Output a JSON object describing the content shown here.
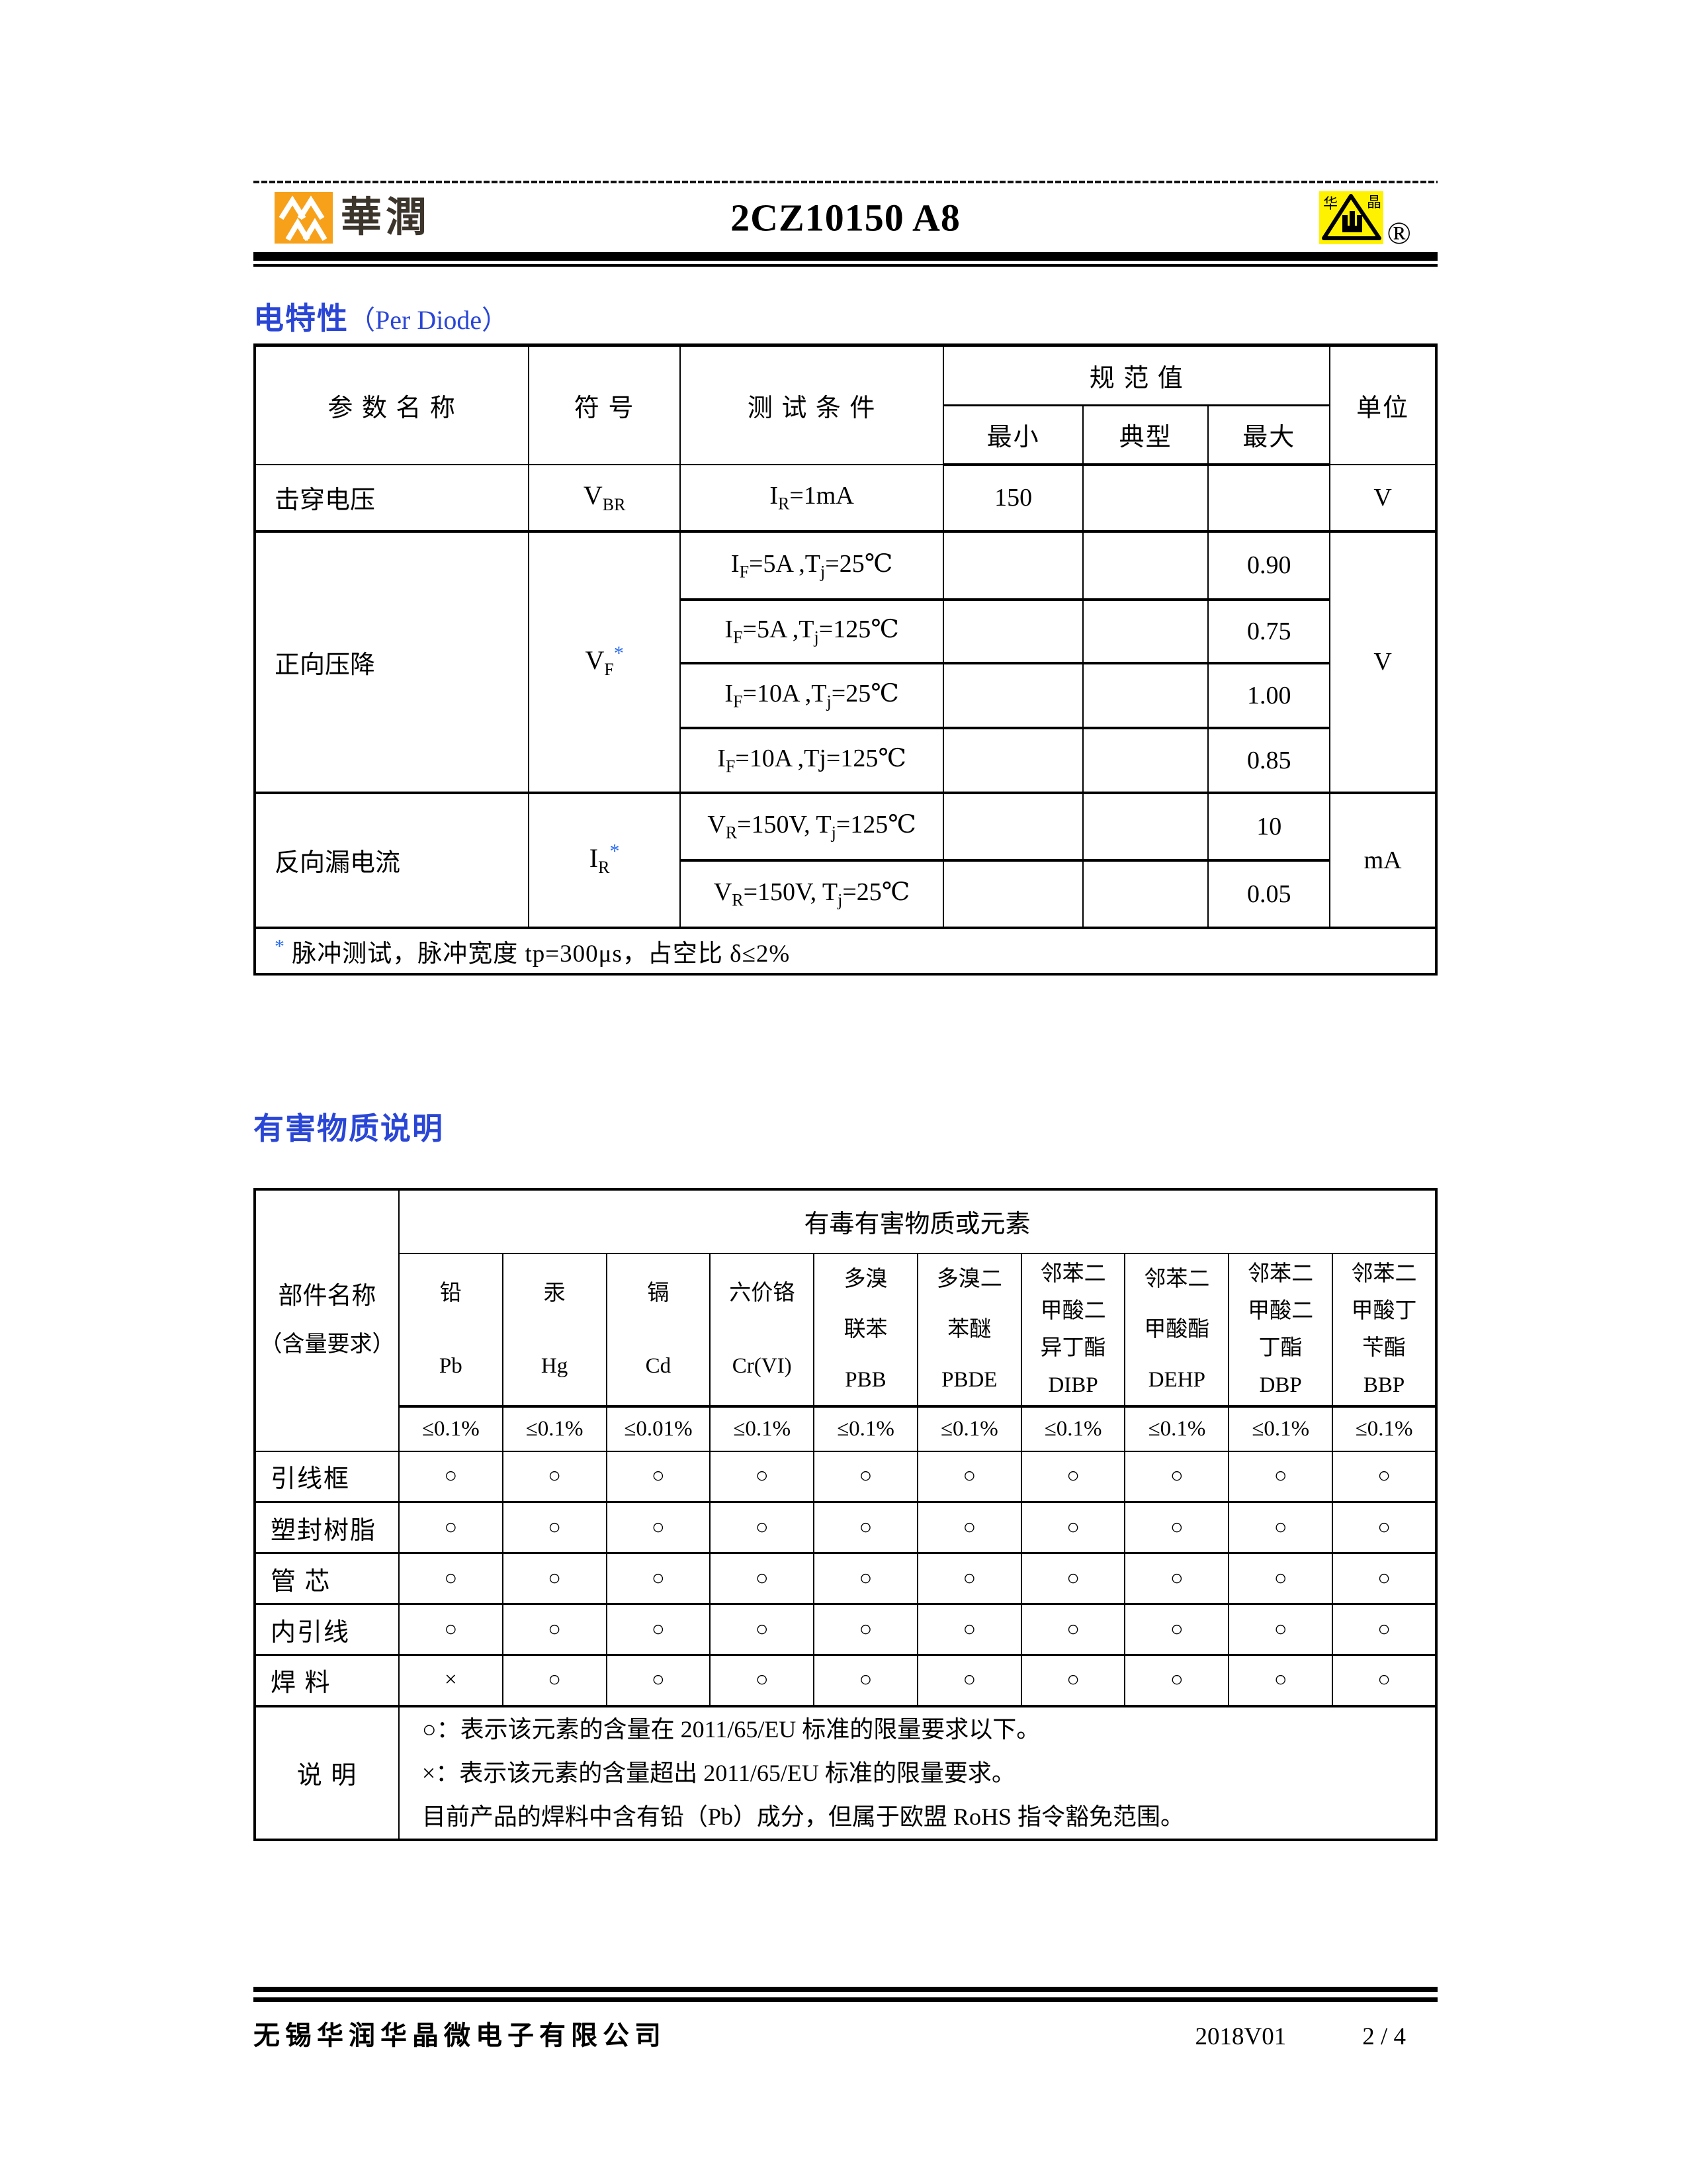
{
  "colors": {
    "accent_blue": "#2a46d6",
    "cr_orange": "#f7a11a",
    "hj_yellow": "#fff200",
    "ink": "#000000"
  },
  "header": {
    "title": "2CZ10150 A8",
    "brand_left_text": "華潤",
    "brand_right_char_left": "华",
    "brand_right_char_right": "晶",
    "registered": "®"
  },
  "electrical": {
    "section_title": "电特性",
    "section_title_en": "（Per Diode）",
    "headers": {
      "param": "参 数 名 称",
      "symbol": "符  号",
      "cond": "测 试 条 件",
      "spec": "规 范 值",
      "min": "最小",
      "typ": "典型",
      "max": "最大",
      "unit": "单位"
    },
    "vbr": {
      "param": "击穿电压",
      "symbol": "V~BR~",
      "cond": "I~R~=1mA",
      "min": "150",
      "typ": "",
      "max": "",
      "unit": "V"
    },
    "vf": {
      "param": "正向压降",
      "symbol": "V~F~^*^",
      "unit": "V",
      "rows": [
        {
          "cond": "I~F~=5A ,T~j~=25℃",
          "min": "",
          "typ": "",
          "max": "0.90"
        },
        {
          "cond": "I~F~=5A ,T~j~=125℃",
          "min": "",
          "typ": "",
          "max": "0.75"
        },
        {
          "cond": "I~F~=10A ,T~j~=25℃",
          "min": "",
          "typ": "",
          "max": "1.00"
        },
        {
          "cond": "I~F~=10A ,Tj=125℃",
          "min": "",
          "typ": "",
          "max": "0.85"
        }
      ]
    },
    "ir": {
      "param": "反向漏电流",
      "symbol": "I~R~^*^",
      "unit": "mA",
      "rows": [
        {
          "cond": "V~R~=150V, T~j~=125℃",
          "min": "",
          "typ": "",
          "max": "10"
        },
        {
          "cond": "V~R~=150V, T~j~=25℃",
          "min": "",
          "typ": "",
          "max": "0.05"
        }
      ]
    },
    "note": "^*^ 脉冲测试，脉冲宽度 tp=300μs，占空比 δ≤2%"
  },
  "rohs": {
    "section_title": "有害物质说明",
    "col1_line1": "部件名称",
    "col1_line2": "（含量要求）",
    "span_header": "有毒有害物质或元素",
    "substances": [
      "铅\nPb",
      "汞\nHg",
      "镉\nCd",
      "六价铬\nCr(VI)",
      "多溴\n联苯\nPBB",
      "多溴二\n苯醚\nPBDE",
      "邻苯二\n甲酸二\n异丁酯\nDIBP",
      "邻苯二\n甲酸酯\nDEHP",
      "邻苯二\n甲酸二\n丁酯\nDBP",
      "邻苯二\n甲酸丁\n苄酯\nBBP"
    ],
    "limits": [
      "≤0.1%",
      "≤0.1%",
      "≤0.01%",
      "≤0.1%",
      "≤0.1%",
      "≤0.1%",
      "≤0.1%",
      "≤0.1%",
      "≤0.1%",
      "≤0.1%"
    ],
    "rows": [
      {
        "part": "引线框",
        "marks": [
          "○",
          "○",
          "○",
          "○",
          "○",
          "○",
          "○",
          "○",
          "○",
          "○"
        ]
      },
      {
        "part": "塑封树脂",
        "marks": [
          "○",
          "○",
          "○",
          "○",
          "○",
          "○",
          "○",
          "○",
          "○",
          "○"
        ]
      },
      {
        "part": "管 芯",
        "marks": [
          "○",
          "○",
          "○",
          "○",
          "○",
          "○",
          "○",
          "○",
          "○",
          "○"
        ]
      },
      {
        "part": "内引线",
        "marks": [
          "○",
          "○",
          "○",
          "○",
          "○",
          "○",
          "○",
          "○",
          "○",
          "○"
        ]
      },
      {
        "part": "焊 料",
        "marks": [
          "×",
          "○",
          "○",
          "○",
          "○",
          "○",
          "○",
          "○",
          "○",
          "○"
        ]
      }
    ],
    "notes_label": "说  明",
    "notes": [
      "○：表示该元素的含量在 2011/65/EU 标准的限量要求以下。",
      "×：表示该元素的含量超出 2011/65/EU 标准的限量要求。",
      "目前产品的焊料中含有铅（Pb）成分，但属于欧盟 RoHS 指令豁免范围。"
    ]
  },
  "footer": {
    "company": "无锡华润华晶微电子有限公司",
    "version": "2018V01",
    "page": "2 / 4"
  }
}
